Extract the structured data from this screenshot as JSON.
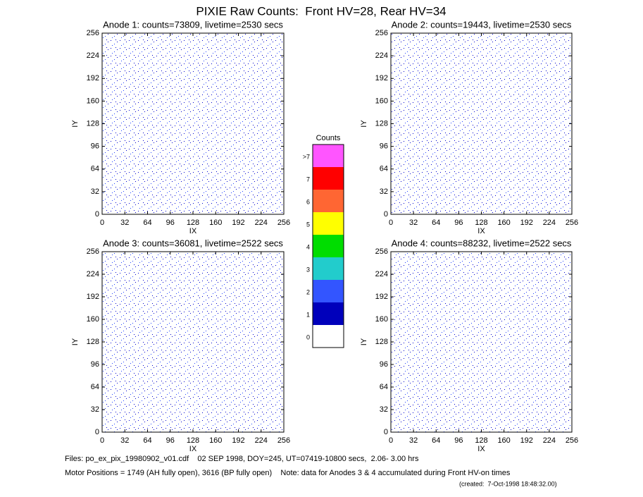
{
  "title": "PIXIE Raw Counts:  Front HV=28, Rear HV=34",
  "panels": [
    {
      "title": "Anode 1: counts=73809, livetime=2530 secs",
      "xlabel": "IX",
      "ylabel": "IY",
      "xlim": [
        0,
        256
      ],
      "ylim": [
        0,
        256
      ],
      "xticks": [
        0,
        32,
        64,
        96,
        128,
        160,
        192,
        224,
        256
      ],
      "yticks": [
        0,
        32,
        64,
        96,
        128,
        160,
        192,
        224,
        256
      ]
    },
    {
      "title": "Anode 2: counts=19443, livetime=2530 secs",
      "xlabel": "IX",
      "ylabel": "IY",
      "xlim": [
        0,
        256
      ],
      "ylim": [
        0,
        256
      ],
      "xticks": [
        0,
        32,
        64,
        96,
        128,
        160,
        192,
        224,
        256
      ],
      "yticks": [
        0,
        32,
        64,
        96,
        128,
        160,
        192,
        224,
        256
      ]
    },
    {
      "title": "Anode 3: counts=36081, livetime=2522 secs",
      "xlabel": "IX",
      "ylabel": "IY",
      "xlim": [
        0,
        256
      ],
      "ylim": [
        0,
        256
      ],
      "xticks": [
        0,
        32,
        64,
        96,
        128,
        160,
        192,
        224,
        256
      ],
      "yticks": [
        0,
        32,
        64,
        96,
        128,
        160,
        192,
        224,
        256
      ]
    },
    {
      "title": "Anode 4: counts=88232, livetime=2522 secs",
      "xlabel": "IX",
      "ylabel": "IY",
      "xlim": [
        0,
        256
      ],
      "ylim": [
        0,
        256
      ],
      "xticks": [
        0,
        32,
        64,
        96,
        128,
        160,
        192,
        224,
        256
      ],
      "yticks": [
        0,
        32,
        64,
        96,
        128,
        160,
        192,
        224,
        256
      ]
    }
  ],
  "colorbar": {
    "title": "Counts",
    "levels": [
      {
        "label": "0",
        "color": "#ffffff"
      },
      {
        "label": "1",
        "color": "#0000bb"
      },
      {
        "label": "2",
        "color": "#3355ff"
      },
      {
        "label": "3",
        "color": "#22cccc"
      },
      {
        "label": "4",
        "color": "#00dd00"
      },
      {
        "label": "5",
        "color": "#ffff00"
      },
      {
        "label": "6",
        "color": "#ff6633"
      },
      {
        "label": "7",
        "color": "#ff0000"
      },
      {
        "label": ">7",
        "color": "#ff55ff"
      }
    ]
  },
  "footer": [
    "Files: po_ex_pix_19980902_v01.cdf    02 SEP 1998, DOY=245, UT=07419-10800 secs,  2.06- 3.00 hrs",
    "Motor Positions = 1749 (AH fully open), 3616 (BP fully open)    Note: data for Anodes 3 & 4 accumulated during Front HV-on times"
  ],
  "created": "(created:  7-Oct-1998 18:48:32.00)"
}
